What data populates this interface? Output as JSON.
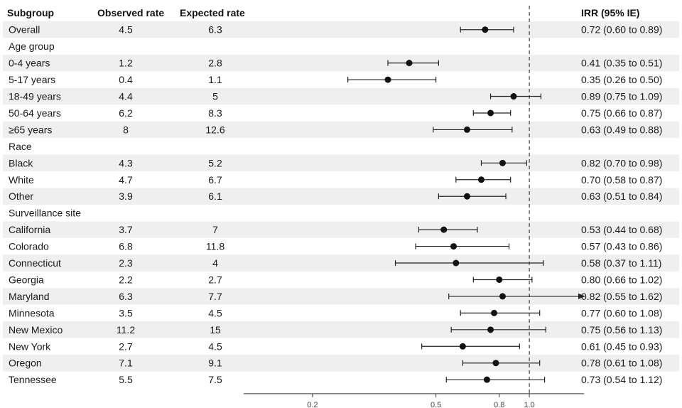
{
  "chart_data": {
    "type": "forest",
    "columns": {
      "subgroup": "Subgroup",
      "observed": "Observed rate",
      "expected": "Expected rate",
      "estimate": "IRR (95% IE)"
    },
    "xaxis": {
      "scale": "log",
      "ticks": [
        0.2,
        0.5,
        0.8,
        1.0
      ],
      "range": [
        0.12,
        1.5
      ],
      "reference_line": 1.0
    },
    "rows": [
      {
        "label": "Overall",
        "observed": "4.5",
        "expected": "6.3",
        "irr": 0.72,
        "lo": 0.6,
        "hi": 0.89,
        "ci_text": "0.72 (0.60 to 0.89)"
      },
      {
        "label": "Age group",
        "header": true
      },
      {
        "label": "0-4 years",
        "observed": "1.2",
        "expected": "2.8",
        "irr": 0.41,
        "lo": 0.35,
        "hi": 0.51,
        "ci_text": "0.41 (0.35 to 0.51)"
      },
      {
        "label": "5-17 years",
        "observed": "0.4",
        "expected": "1.1",
        "irr": 0.35,
        "lo": 0.26,
        "hi": 0.5,
        "ci_text": "0.35 (0.26 to 0.50)"
      },
      {
        "label": "18-49 years",
        "observed": "4.4",
        "expected": "5",
        "irr": 0.89,
        "lo": 0.75,
        "hi": 1.09,
        "ci_text": "0.89 (0.75 to 1.09)"
      },
      {
        "label": "50-64 years",
        "observed": "6.2",
        "expected": "8.3",
        "irr": 0.75,
        "lo": 0.66,
        "hi": 0.87,
        "ci_text": "0.75 (0.66 to 0.87)"
      },
      {
        "label": "≥65 years",
        "observed": "8",
        "expected": "12.6",
        "irr": 0.63,
        "lo": 0.49,
        "hi": 0.88,
        "ci_text": "0.63 (0.49 to 0.88)"
      },
      {
        "label": "Race",
        "header": true
      },
      {
        "label": "Black",
        "observed": "4.3",
        "expected": "5.2",
        "irr": 0.82,
        "lo": 0.7,
        "hi": 0.98,
        "ci_text": "0.82 (0.70 to 0.98)"
      },
      {
        "label": "White",
        "observed": "4.7",
        "expected": "6.7",
        "irr": 0.7,
        "lo": 0.58,
        "hi": 0.87,
        "ci_text": "0.70 (0.58 to 0.87)"
      },
      {
        "label": "Other",
        "observed": "3.9",
        "expected": "6.1",
        "irr": 0.63,
        "lo": 0.51,
        "hi": 0.84,
        "ci_text": "0.63 (0.51 to 0.84)"
      },
      {
        "label": "Surveillance site",
        "header": true
      },
      {
        "label": "California",
        "observed": "3.7",
        "expected": "7",
        "irr": 0.53,
        "lo": 0.44,
        "hi": 0.68,
        "ci_text": "0.53 (0.44 to 0.68)"
      },
      {
        "label": "Colorado",
        "observed": "6.8",
        "expected": "11.8",
        "irr": 0.57,
        "lo": 0.43,
        "hi": 0.86,
        "ci_text": "0.57 (0.43 to 0.86)"
      },
      {
        "label": "Connecticut",
        "observed": "2.3",
        "expected": "4",
        "irr": 0.58,
        "lo": 0.37,
        "hi": 1.11,
        "ci_text": "0.58 (0.37 to 1.11)"
      },
      {
        "label": "Georgia",
        "observed": "2.2",
        "expected": "2.7",
        "irr": 0.8,
        "lo": 0.66,
        "hi": 1.02,
        "ci_text": "0.80 (0.66 to 1.02)"
      },
      {
        "label": "Maryland",
        "observed": "6.3",
        "expected": "7.7",
        "irr": 0.82,
        "lo": 0.55,
        "hi": 1.62,
        "ci_text": "0.82 (0.55 to 1.62)"
      },
      {
        "label": "Minnesota",
        "observed": "3.5",
        "expected": "4.5",
        "irr": 0.77,
        "lo": 0.6,
        "hi": 1.08,
        "ci_text": "0.77 (0.60 to 1.08)"
      },
      {
        "label": "New Mexico",
        "observed": "11.2",
        "expected": "15",
        "irr": 0.75,
        "lo": 0.56,
        "hi": 1.13,
        "ci_text": "0.75 (0.56 to 1.13)"
      },
      {
        "label": "New York",
        "observed": "2.7",
        "expected": "4.5",
        "irr": 0.61,
        "lo": 0.45,
        "hi": 0.93,
        "ci_text": "0.61 (0.45 to 0.93)"
      },
      {
        "label": "Oregon",
        "observed": "7.1",
        "expected": "9.1",
        "irr": 0.78,
        "lo": 0.61,
        "hi": 1.08,
        "ci_text": "0.78 (0.61 to 1.08)"
      },
      {
        "label": "Tennessee",
        "observed": "5.5",
        "expected": "7.5",
        "irr": 0.73,
        "lo": 0.54,
        "hi": 1.12,
        "ci_text": "0.73 (0.54 to 1.12)"
      }
    ],
    "colors": {
      "stripe": "#efefef",
      "marker": "#111111",
      "line": "#222222"
    }
  }
}
